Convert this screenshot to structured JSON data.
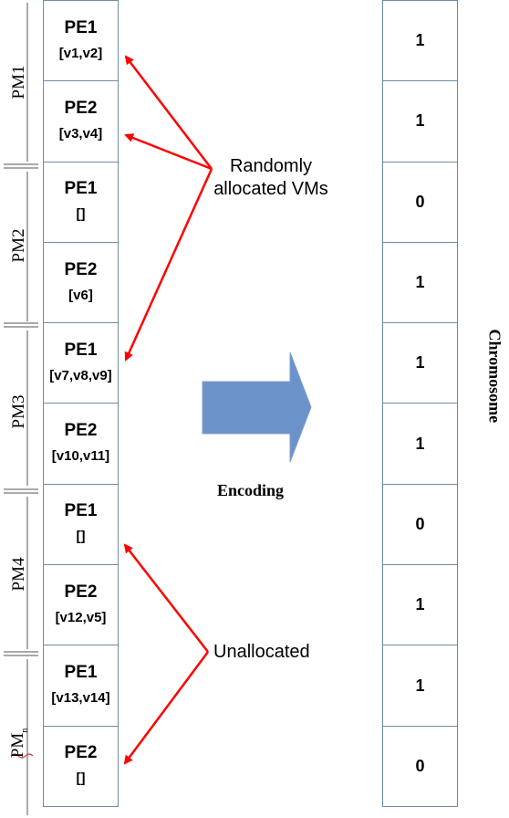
{
  "pe_cells": [
    {
      "pe": "PE1",
      "vms": "[v1,v2]"
    },
    {
      "pe": "PE2",
      "vms": "[v3,v4]"
    },
    {
      "pe": "PE1",
      "vms": "[]"
    },
    {
      "pe": "PE2",
      "vms": "[v6]"
    },
    {
      "pe": "PE1",
      "vms": "[v7,v8,v9]"
    },
    {
      "pe": "PE2",
      "vms": "[v10,v11]"
    },
    {
      "pe": "PE1",
      "vms": "[]"
    },
    {
      "pe": "PE2",
      "vms": "[v12,v5]"
    },
    {
      "pe": "PE1",
      "vms": "[v13,v14]"
    },
    {
      "pe": "PE2",
      "vms": "[]"
    }
  ],
  "pm_labels": [
    "PM1",
    "PM2",
    "PM3",
    "PM4",
    "PM"
  ],
  "pm_last_subscript": "n",
  "chromosome": [
    "1",
    "1",
    "0",
    "1",
    "1",
    "1",
    "0",
    "1",
    "1",
    "0"
  ],
  "annotations": {
    "allocated_line1": "Randomly",
    "allocated_line2": "allocated VMs",
    "unallocated": "Unallocated",
    "encoding": "Encoding",
    "chromosome": "Chromosome"
  },
  "colors": {
    "arrow_red": "#ff0000",
    "cell_border": "#6d8ca8",
    "block_arrow_fill": "#6b93c9"
  }
}
